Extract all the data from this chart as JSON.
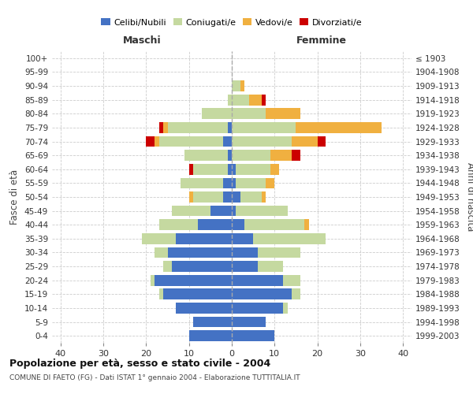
{
  "age_groups": [
    "0-4",
    "5-9",
    "10-14",
    "15-19",
    "20-24",
    "25-29",
    "30-34",
    "35-39",
    "40-44",
    "45-49",
    "50-54",
    "55-59",
    "60-64",
    "65-69",
    "70-74",
    "75-79",
    "80-84",
    "85-89",
    "90-94",
    "95-99",
    "100+"
  ],
  "birth_years": [
    "1999-2003",
    "1994-1998",
    "1989-1993",
    "1984-1988",
    "1979-1983",
    "1974-1978",
    "1969-1973",
    "1964-1968",
    "1959-1963",
    "1954-1958",
    "1949-1953",
    "1944-1948",
    "1939-1943",
    "1934-1938",
    "1929-1933",
    "1924-1928",
    "1919-1923",
    "1914-1918",
    "1909-1913",
    "1904-1908",
    "≤ 1903"
  ],
  "males": {
    "celibi": [
      10,
      9,
      13,
      16,
      18,
      14,
      15,
      13,
      8,
      5,
      2,
      2,
      1,
      1,
      2,
      1,
      0,
      0,
      0,
      0,
      0
    ],
    "coniugati": [
      0,
      0,
      0,
      1,
      1,
      2,
      3,
      8,
      9,
      9,
      7,
      10,
      8,
      10,
      15,
      14,
      7,
      1,
      0,
      0,
      0
    ],
    "vedovi": [
      0,
      0,
      0,
      0,
      0,
      0,
      0,
      0,
      0,
      0,
      1,
      0,
      0,
      0,
      1,
      1,
      0,
      0,
      0,
      0,
      0
    ],
    "divorziati": [
      0,
      0,
      0,
      0,
      0,
      0,
      0,
      0,
      0,
      0,
      0,
      0,
      1,
      0,
      2,
      1,
      0,
      0,
      0,
      0,
      0
    ]
  },
  "females": {
    "nubili": [
      10,
      8,
      12,
      14,
      12,
      6,
      6,
      5,
      3,
      1,
      2,
      1,
      1,
      0,
      0,
      0,
      0,
      0,
      0,
      0,
      0
    ],
    "coniugate": [
      0,
      0,
      1,
      2,
      4,
      6,
      10,
      17,
      14,
      12,
      5,
      7,
      8,
      9,
      14,
      15,
      8,
      4,
      2,
      0,
      0
    ],
    "vedove": [
      0,
      0,
      0,
      0,
      0,
      0,
      0,
      0,
      1,
      0,
      1,
      2,
      2,
      5,
      6,
      20,
      8,
      3,
      1,
      0,
      0
    ],
    "divorziate": [
      0,
      0,
      0,
      0,
      0,
      0,
      0,
      0,
      0,
      0,
      0,
      0,
      0,
      2,
      2,
      0,
      0,
      1,
      0,
      0,
      0
    ]
  },
  "colors": {
    "celibi_nubili": "#4472C4",
    "coniugati": "#c5d9a0",
    "vedovi": "#f0b040",
    "divorziati": "#cc0000"
  },
  "xlim": 42,
  "title": "Popolazione per età, sesso e stato civile - 2004",
  "subtitle": "COMUNE DI FAETO (FG) - Dati ISTAT 1° gennaio 2004 - Elaborazione TUTTITALIA.IT",
  "xlabel_left": "Maschi",
  "xlabel_right": "Femmine",
  "ylabel_left": "Fasce di età",
  "ylabel_right": "Anni di nascita"
}
